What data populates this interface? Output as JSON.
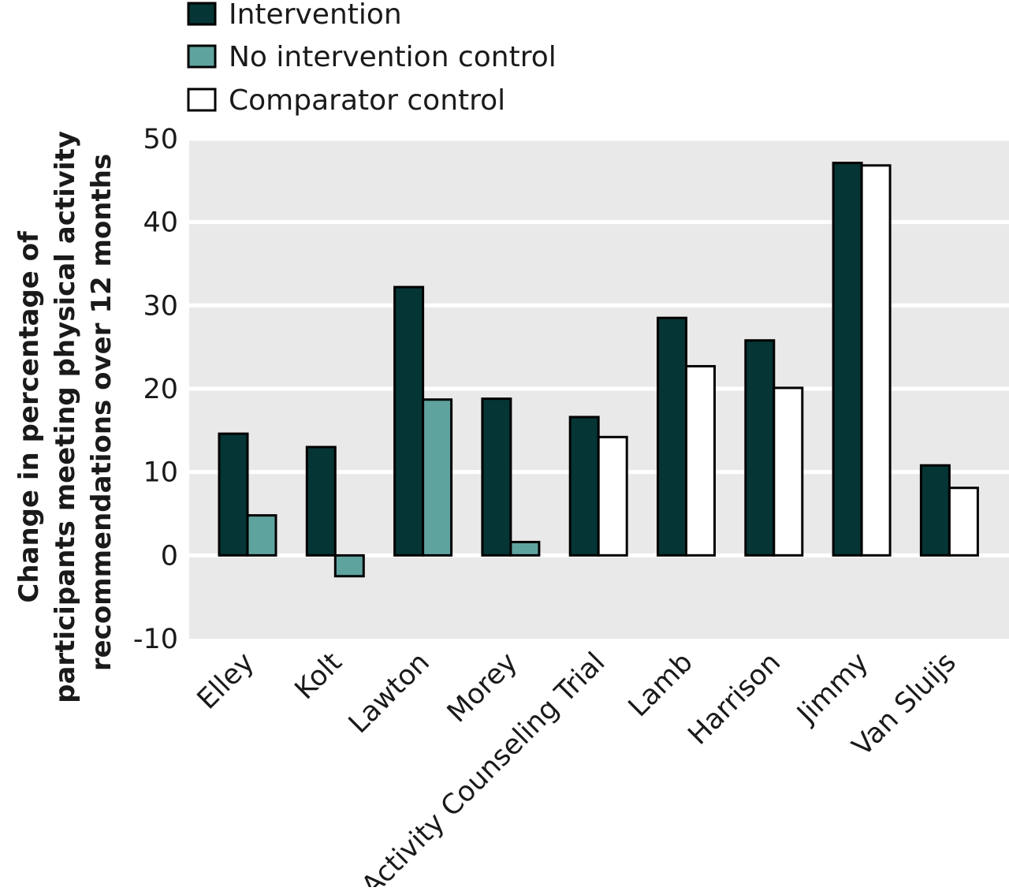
{
  "chart_data": {
    "type": "bar",
    "title": "",
    "xlabel": "",
    "ylabel_lines": [
      "Change in percentage of",
      "participants meeting physical activity",
      "recommendations over 12 months"
    ],
    "ylim": [
      -10,
      50
    ],
    "yticks": [
      -10,
      0,
      10,
      20,
      30,
      40,
      50
    ],
    "grid": true,
    "legend_position": "top-left",
    "categories": [
      "Elley",
      "Kolt",
      "Lawton",
      "Morey",
      "Activity Counseling Trial",
      "Lamb",
      "Harrison",
      "Jimmy",
      "Van Sluijs"
    ],
    "series": [
      {
        "name": "Intervention",
        "color": "#053535",
        "values": [
          14.6,
          13.0,
          32.2,
          18.8,
          16.6,
          28.5,
          25.8,
          47.1,
          10.8
        ]
      },
      {
        "name": "No intervention control",
        "color": "#5fa39f",
        "values": [
          4.8,
          -2.5,
          18.7,
          1.6,
          null,
          null,
          null,
          null,
          null
        ]
      },
      {
        "name": "Comparator control",
        "color": "#ffffff",
        "values": [
          null,
          null,
          null,
          null,
          14.2,
          22.7,
          20.1,
          46.8,
          8.1
        ]
      }
    ],
    "plot_background": "#e9e9e9",
    "grid_color": "#ffffff",
    "bar_outline_color": "#000000"
  }
}
